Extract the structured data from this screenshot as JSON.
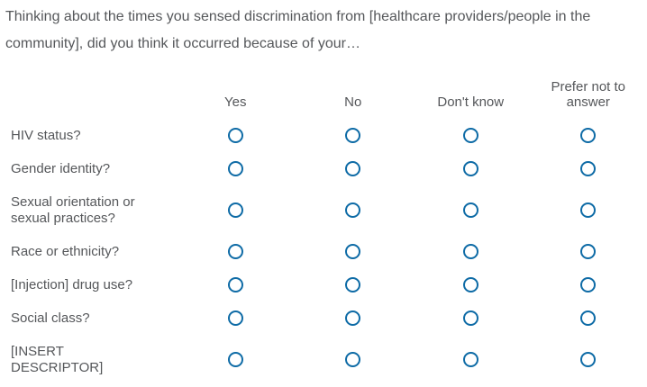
{
  "question": {
    "text": "Thinking about the times you sensed discrimination from [healthcare providers/people in the community], did you think it occurred because of your…"
  },
  "matrix": {
    "columns": [
      "Yes",
      "No",
      "Don't know",
      "Prefer not to answer"
    ],
    "rows": [
      "HIV status?",
      "Gender identity?",
      "Sexual orientation or sexual practices?",
      "Race or ethnicity?",
      "[Injection] drug use?",
      "Social class?",
      "[INSERT DESCRIPTOR]"
    ],
    "selected": null
  },
  "colors": {
    "text": "#55575a",
    "radio": "#0e6ba6"
  }
}
